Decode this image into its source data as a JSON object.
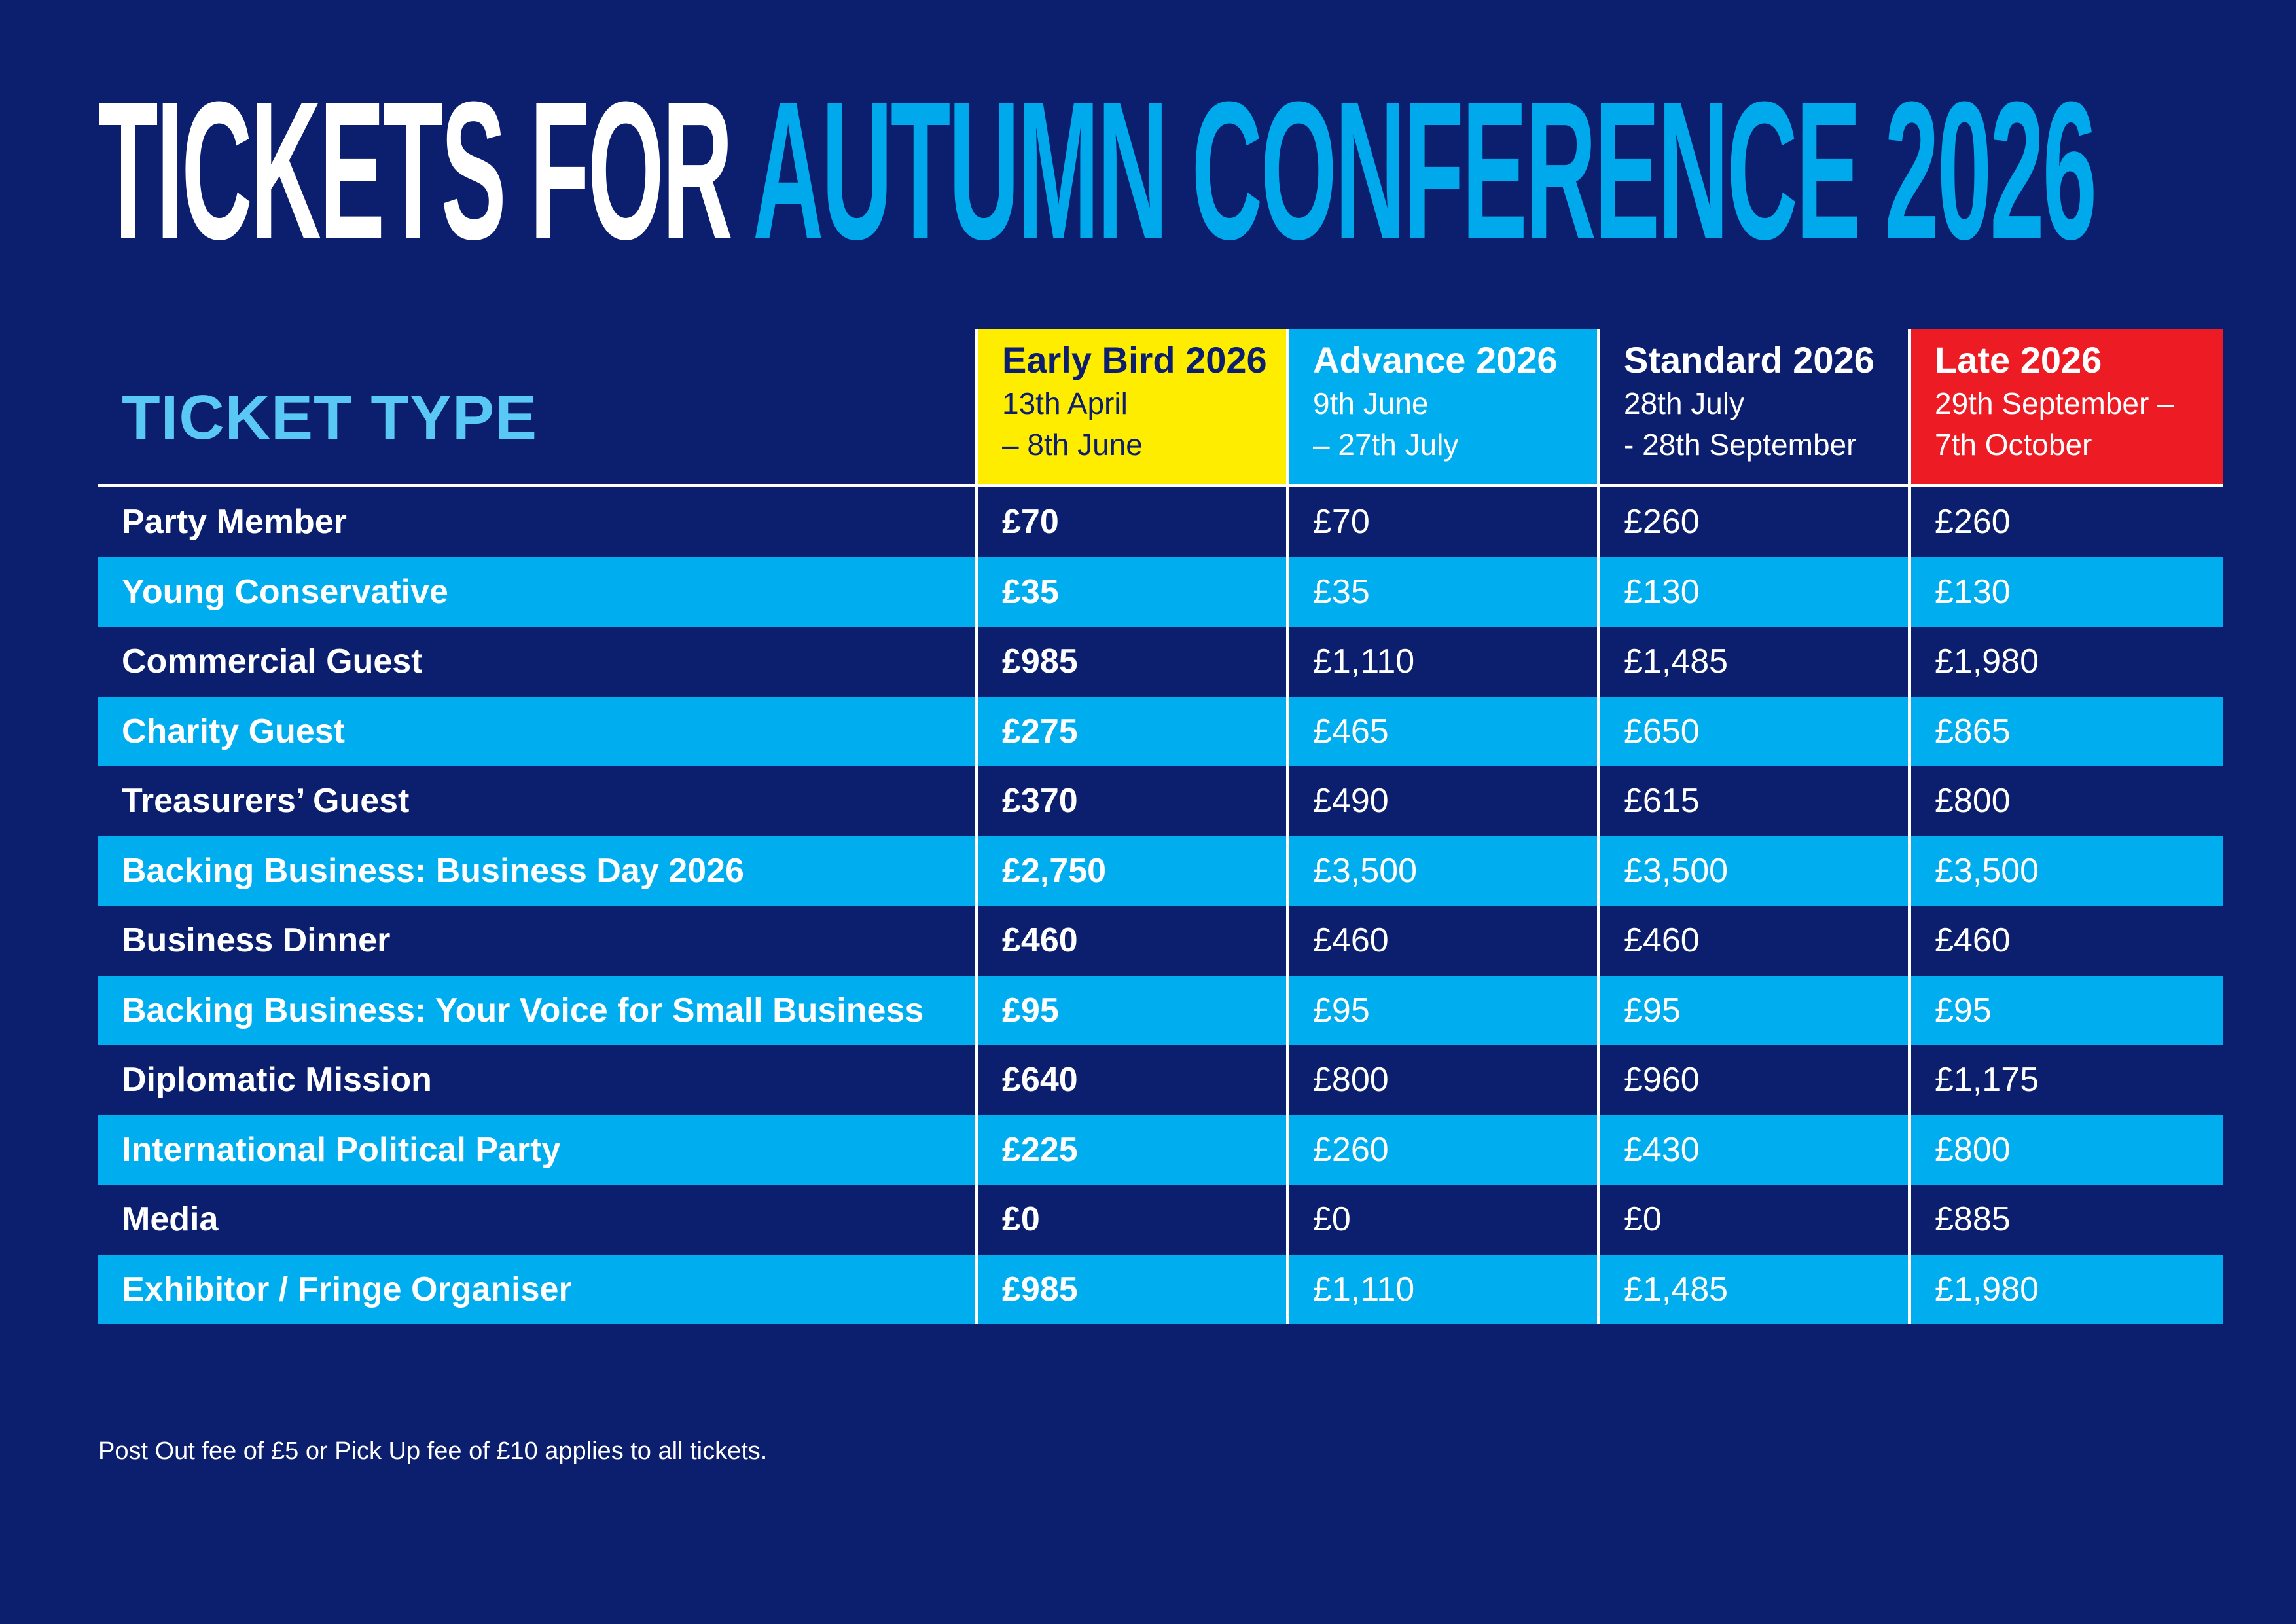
{
  "title": {
    "part1": "TICKETS FOR ",
    "part2": "AUTUMN CONFERENCE 2026"
  },
  "colors": {
    "background": "#0c1f6e",
    "accent_blue": "#00aeef",
    "early_bird": "#ffed00",
    "late": "#ed1c24",
    "header_type": "#5ac8f4"
  },
  "table": {
    "type_header": "TICKET TYPE",
    "columns": [
      {
        "title": "Early Bird 2026",
        "line1": "13th April",
        "line2": "– 8th June",
        "bg": "#ffed00",
        "fg": "#0c1f6e"
      },
      {
        "title": "Advance 2026",
        "line1": "9th June",
        "line2": "– 27th July",
        "bg": "#00aeef",
        "fg": "#ffffff"
      },
      {
        "title": "Standard 2026",
        "line1": "28th July",
        "line2": "- 28th September",
        "bg": "#0c1f6e",
        "fg": "#ffffff"
      },
      {
        "title": "Late 2026",
        "line1": "29th September –",
        "line2": "7th October",
        "bg": "#ed1c24",
        "fg": "#ffffff"
      }
    ],
    "rows": [
      {
        "label": "Party Member",
        "values": [
          "£70",
          "£70",
          "£260",
          "£260"
        ]
      },
      {
        "label": "Young Conservative",
        "values": [
          "£35",
          "£35",
          "£130",
          "£130"
        ]
      },
      {
        "label": "Commercial Guest",
        "values": [
          "£985",
          "£1,110",
          "£1,485",
          "£1,980"
        ]
      },
      {
        "label": "Charity Guest",
        "values": [
          "£275",
          "£465",
          "£650",
          "£865"
        ]
      },
      {
        "label": "Treasurers’ Guest",
        "values": [
          "£370",
          "£490",
          "£615",
          "£800"
        ]
      },
      {
        "label": "Backing Business: Business Day 2026",
        "values": [
          "£2,750",
          "£3,500",
          "£3,500",
          "£3,500"
        ]
      },
      {
        "label": "Business Dinner",
        "values": [
          "£460",
          "£460",
          "£460",
          "£460"
        ]
      },
      {
        "label": "Backing Business: Your Voice for Small Business",
        "values": [
          "£95",
          "£95",
          "£95",
          "£95"
        ]
      },
      {
        "label": "Diplomatic Mission",
        "values": [
          "£640",
          "£800",
          "£960",
          "£1,175"
        ]
      },
      {
        "label": "International Political Party",
        "values": [
          "£225",
          "£260",
          "£430",
          "£800"
        ]
      },
      {
        "label": "Media",
        "values": [
          "£0",
          "£0",
          "£0",
          "£885"
        ]
      },
      {
        "label": "Exhibitor / Fringe Organiser",
        "values": [
          "£985",
          "£1,110",
          "£1,485",
          "£1,980"
        ]
      }
    ]
  },
  "footnote": "Post Out fee of £5 or Pick Up fee of £10 applies to all tickets."
}
